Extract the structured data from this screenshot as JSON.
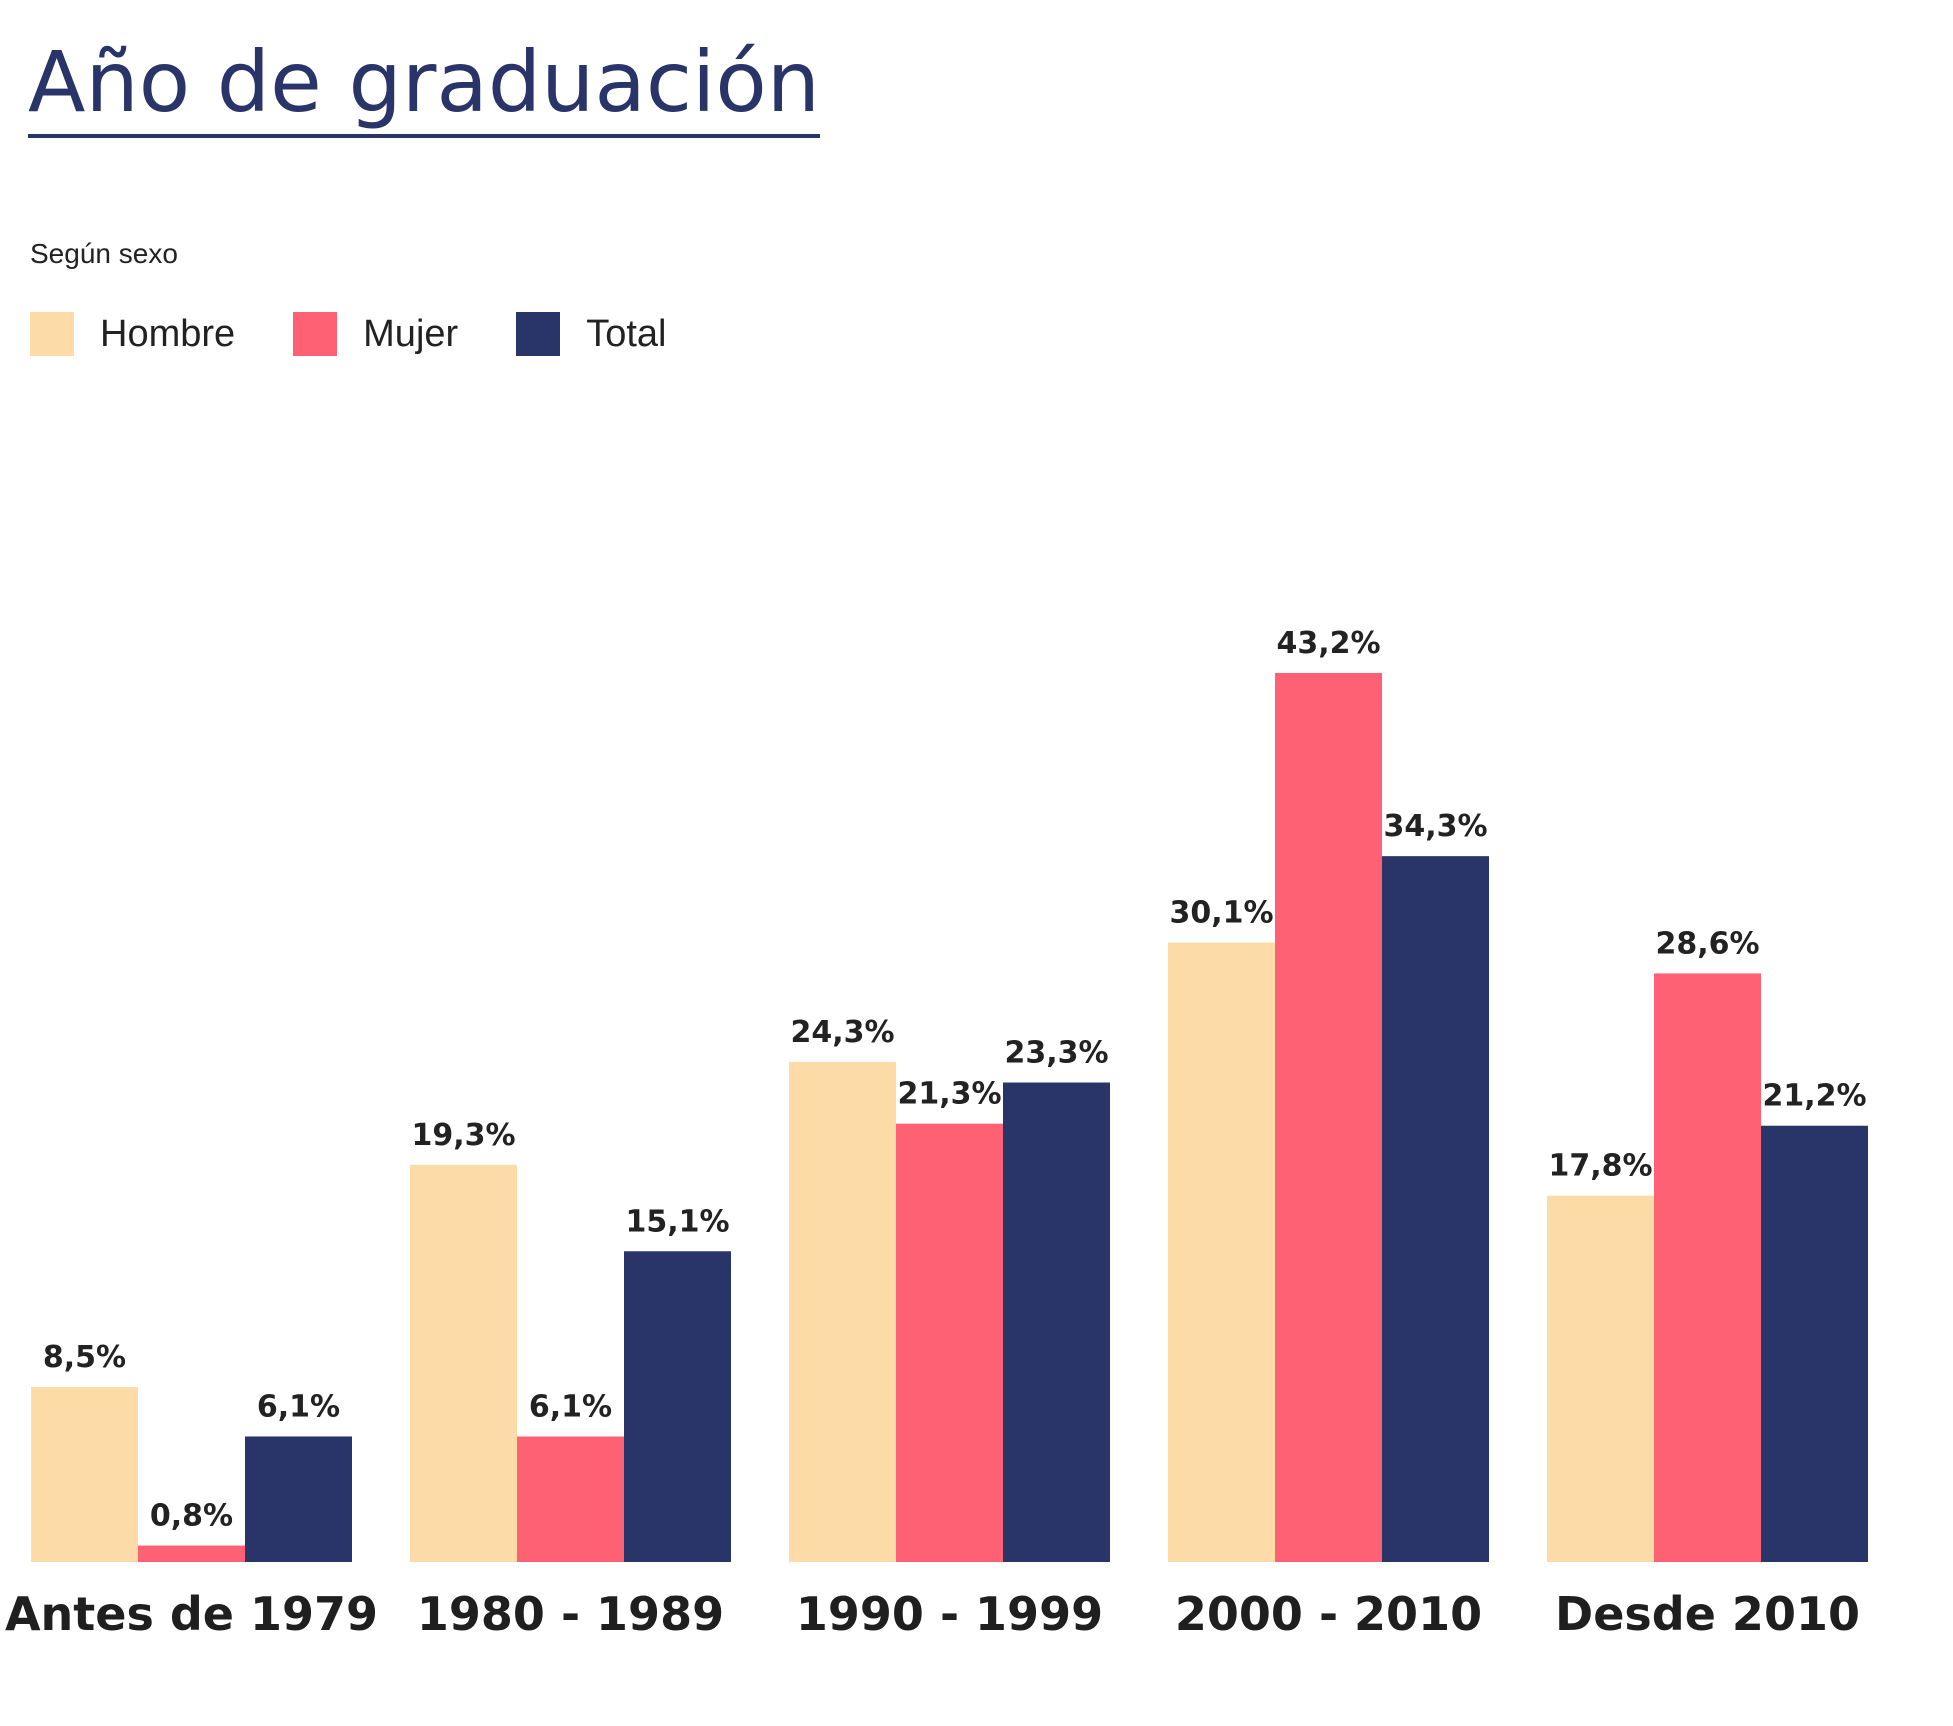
{
  "title": "Año de graduación",
  "subtitle": "Según sexo",
  "legend": [
    {
      "label": "Hombre",
      "color": "#fddba6"
    },
    {
      "label": "Mujer",
      "color": "#ff6174"
    },
    {
      "label": "Total",
      "color": "#293469"
    }
  ],
  "chart_data": {
    "type": "bar",
    "title": "Año de graduación",
    "subtitle": "Según sexo",
    "categories": [
      "Antes de 1979",
      "1980 - 1989",
      "1990 - 1999",
      "2000 - 2010",
      "Desde 2010"
    ],
    "series": [
      {
        "name": "Hombre",
        "color": "#fddba6",
        "values": [
          8.5,
          19.3,
          24.3,
          30.1,
          17.8
        ],
        "labels": [
          "8,5%",
          "19,3%",
          "24,3%",
          "30,1%",
          "17,8%"
        ]
      },
      {
        "name": "Mujer",
        "color": "#ff6174",
        "values": [
          0.8,
          6.1,
          21.3,
          43.2,
          28.6
        ],
        "labels": [
          "0,8%",
          "6,1%",
          "21,3%",
          "43,2%",
          "28,6%"
        ]
      },
      {
        "name": "Total",
        "color": "#293469",
        "values": [
          6.1,
          15.1,
          23.3,
          34.3,
          21.2
        ],
        "labels": [
          "6,1%",
          "15,1%",
          "23,3%",
          "34,3%",
          "21,2%"
        ]
      }
    ],
    "xlabel": "",
    "ylabel": "",
    "ylim": [
      0,
      43.2
    ],
    "grid": false,
    "legend_position": "top-left"
  }
}
